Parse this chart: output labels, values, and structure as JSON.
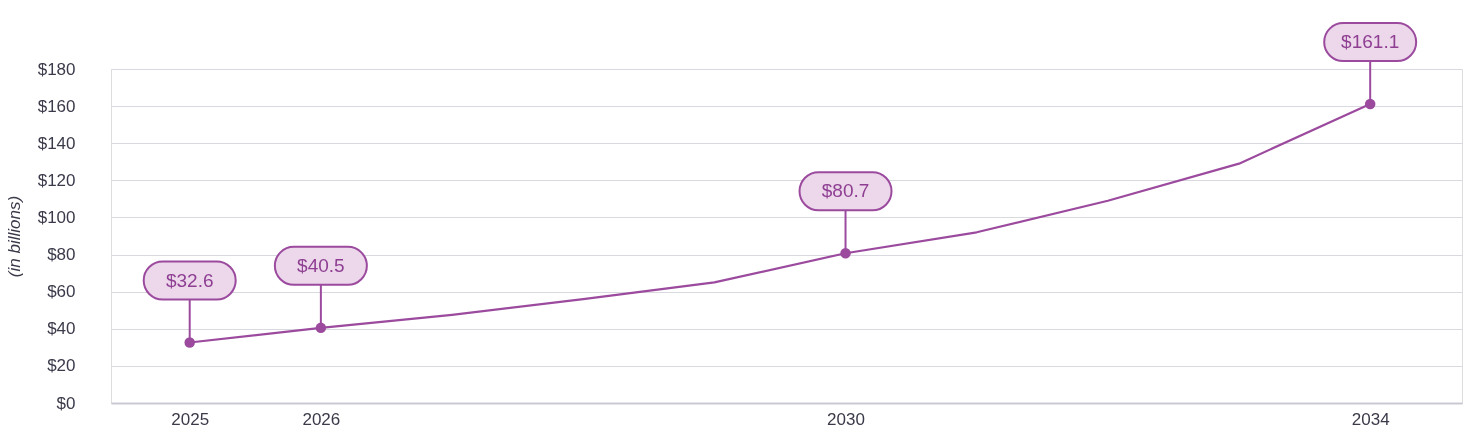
{
  "chart_data": {
    "type": "line",
    "ylabel": "(in billions)",
    "x": [
      2025,
      2026,
      2027,
      2028,
      2029,
      2030,
      2031,
      2032,
      2033,
      2034
    ],
    "series": [
      {
        "color": "#9b4a9e",
        "values": [
          32.6,
          40.5,
          47.5,
          56,
          65,
          80.7,
          92,
          109,
          129,
          161.1
        ],
        "value_labels": [
          "$32.6",
          "$40.5",
          null,
          null,
          null,
          "$80.7",
          null,
          null,
          null,
          "$161.1"
        ]
      },
      {
        "type": "scatter",
        "color": "#9b4a9e",
        "x": [
          2025,
          2026,
          2030,
          2034
        ],
        "values": [
          32.6,
          40.5,
          80.7,
          161.1
        ]
      }
    ],
    "xlim": [
      2024.4,
      2034.7
    ],
    "xticks": [
      2025,
      2026,
      2030,
      2034
    ],
    "ylim": [
      0,
      180
    ],
    "yticks": [
      {
        "value": 0,
        "label": "$0"
      },
      {
        "value": 20,
        "label": "$20"
      },
      {
        "value": 40,
        "label": "$40"
      },
      {
        "value": 60,
        "label": "$60"
      },
      {
        "value": 80,
        "label": "$80"
      },
      {
        "value": 100,
        "label": "$100"
      },
      {
        "value": 120,
        "label": "$120"
      },
      {
        "value": 140,
        "label": "$140"
      },
      {
        "value": 160,
        "label": "$160"
      },
      {
        "value": 180,
        "label": "$180"
      }
    ],
    "grid": "y",
    "line_style": "solid"
  }
}
